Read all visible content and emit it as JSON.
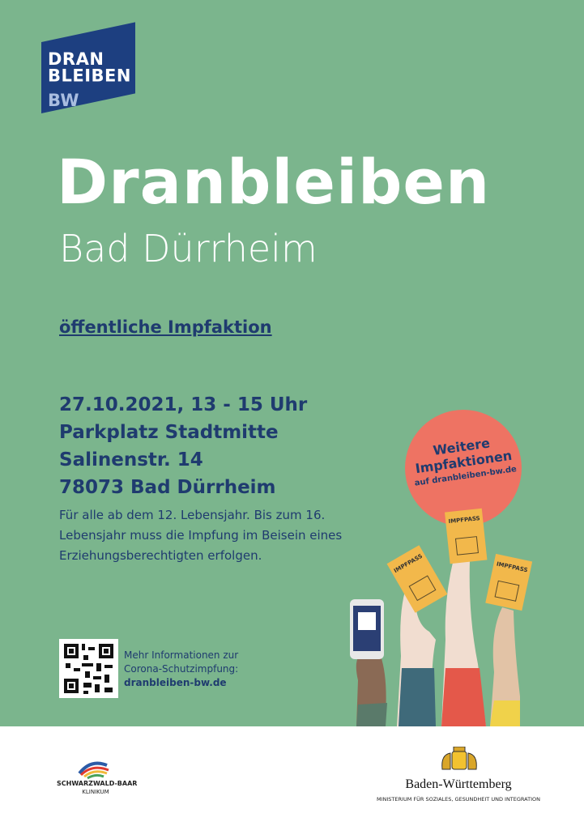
{
  "logo": {
    "lines": [
      "DRAN",
      "BLEIBEN",
      "BW"
    ]
  },
  "header": {
    "title": "Dranbleiben",
    "subtitle": "Bad Dürrheim"
  },
  "event": {
    "heading": "öffentliche Impfaktion",
    "details": [
      "27.10.2021, 13 - 15 Uhr",
      "Parkplatz Stadtmitte",
      "Salinenstr. 14",
      "78073 Bad Dürrheim"
    ],
    "note": [
      "Für alle ab dem 12. Lebensjahr. Bis zum 16.",
      "Lebensjahr muss die Impfung im Beisein eines",
      "Erziehungsberechtigten erfolgen."
    ]
  },
  "badge": {
    "lines": [
      "Weitere",
      "Impfaktionen"
    ],
    "link": "auf dranbleiben-bw.de"
  },
  "illustration": {
    "cards": [
      "IMPFPASS",
      "IMPFPASS",
      "IMPFPASS"
    ]
  },
  "info": {
    "lines": [
      "Mehr Informationen zur",
      "Corona-Schutzimpfung:"
    ],
    "link": "dranbleiben-bw.de"
  },
  "footer": {
    "left": {
      "name": "SCHWARZWALD-BAAR",
      "sub": "KLINIKUM"
    },
    "right": {
      "name": "Baden-Württemberg",
      "sub": "MINISTERIUM FÜR SOZIALES, GESUNDHEIT UND INTEGRATION"
    }
  }
}
